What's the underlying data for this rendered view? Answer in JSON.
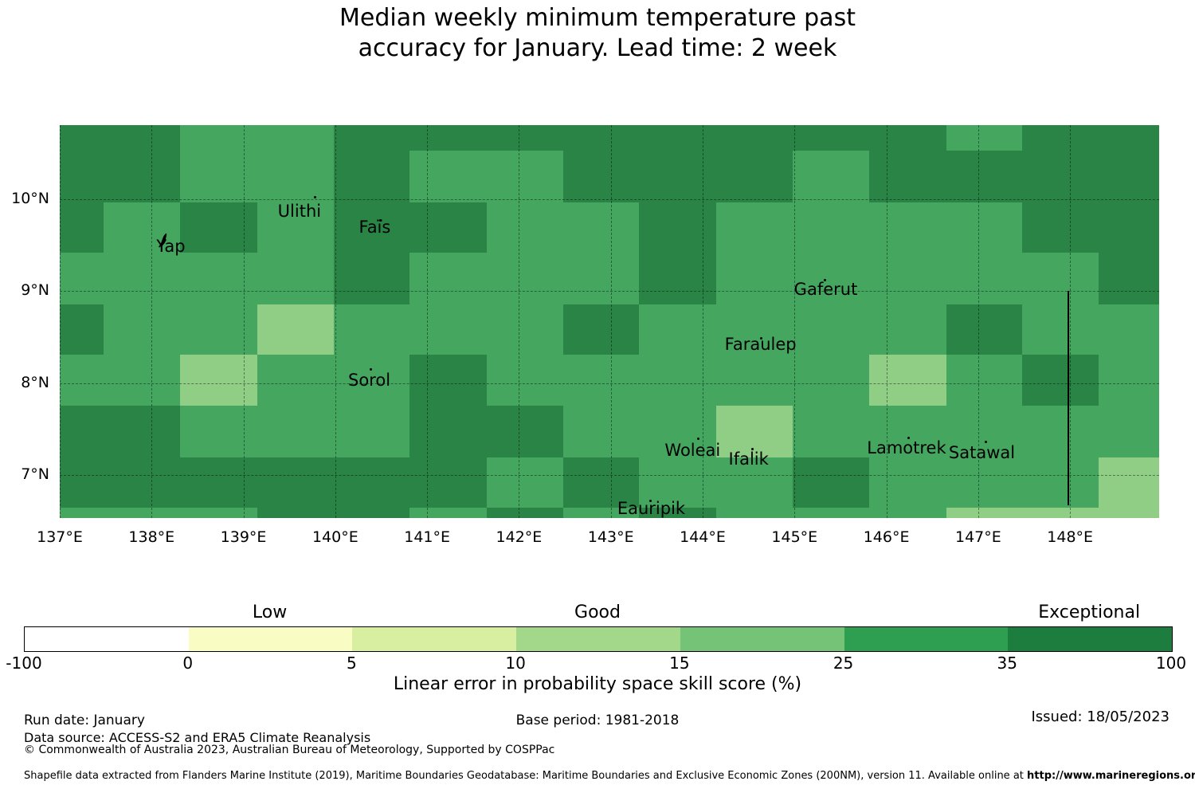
{
  "chart_data": {
    "type": "heatmap",
    "title": [
      "Median weekly minimum temperature past",
      "accuracy for January. Lead time: 2 week"
    ],
    "map": {
      "lon_min": 137.0,
      "lon_max": 148.97,
      "lat_min": 6.53,
      "lat_max": 10.81,
      "lon_edges": [
        137.0,
        137.48,
        138.31,
        139.15,
        139.98,
        140.81,
        141.65,
        142.48,
        143.31,
        144.15,
        144.98,
        145.81,
        146.65,
        147.48,
        148.31,
        148.97
      ],
      "lat_edges": [
        10.81,
        10.53,
        9.97,
        9.42,
        8.86,
        8.31,
        7.75,
        7.19,
        6.64,
        6.53
      ],
      "rows": [
        [
          "D",
          "D",
          "M",
          "M",
          "D",
          "D",
          "D",
          "D",
          "D",
          "D",
          "D",
          "D",
          "M",
          "D",
          "D"
        ],
        [
          "D",
          "D",
          "M",
          "M",
          "D",
          "M",
          "M",
          "D",
          "D",
          "D",
          "M",
          "D",
          "D",
          "D",
          "D"
        ],
        [
          "D",
          "M",
          "D",
          "M",
          "D",
          "D",
          "M",
          "M",
          "D",
          "M",
          "M",
          "M",
          "M",
          "D",
          "D"
        ],
        [
          "M",
          "M",
          "M",
          "M",
          "D",
          "M",
          "M",
          "M",
          "D",
          "M",
          "M",
          "M",
          "M",
          "M",
          "D"
        ],
        [
          "D",
          "M",
          "M",
          "L",
          "M",
          "M",
          "M",
          "D",
          "M",
          "M",
          "M",
          "M",
          "D",
          "M",
          "M"
        ],
        [
          "M",
          "M",
          "L",
          "M",
          "M",
          "D",
          "M",
          "M",
          "M",
          "M",
          "M",
          "L",
          "M",
          "D",
          "M"
        ],
        [
          "D",
          "D",
          "M",
          "M",
          "M",
          "D",
          "D",
          "M",
          "M",
          "L",
          "M",
          "M",
          "M",
          "M",
          "M"
        ],
        [
          "D",
          "D",
          "D",
          "D",
          "D",
          "D",
          "M",
          "D",
          "M",
          "M",
          "D",
          "M",
          "M",
          "M",
          "L"
        ],
        [
          "M",
          "M",
          "M",
          "D",
          "D",
          "M",
          "D",
          "M",
          "D",
          "M",
          "M",
          "M",
          "L",
          "L",
          "L"
        ]
      ],
      "classes": {
        "D": {
          "skill_bin": "35-100",
          "color": "#2a8446"
        },
        "M": {
          "skill_bin": "25-35",
          "color": "#45a65f"
        },
        "L": {
          "skill_bin": "15-25",
          "color": "#8fce84"
        }
      },
      "grid_lons": [
        137,
        138,
        139,
        140,
        141,
        142,
        143,
        144,
        145,
        146,
        147,
        148
      ],
      "grid_lats": [
        7,
        8,
        9,
        10
      ],
      "eez_boundary": {
        "lon": 147.98,
        "lat_from": 9.0,
        "lat_to": 6.67
      },
      "islands": [
        {
          "name": "Yap",
          "marker": "island",
          "dot_lon": 138.13,
          "dot_lat": 9.55,
          "label_lon": 138.21,
          "label_lat": 9.49
        },
        {
          "name": "Ulithi",
          "marker": "dot",
          "dot_lon": 139.78,
          "dot_lat": 10.02,
          "label_lon": 139.61,
          "label_lat": 9.87
        },
        {
          "name": "Faïs",
          "marker": "dot",
          "dot_lon": 140.49,
          "dot_lat": 9.77,
          "label_lon": 140.43,
          "label_lat": 9.7
        },
        {
          "name": "Gaferut",
          "marker": "dot",
          "dot_lon": 145.33,
          "dot_lat": 9.12,
          "label_lon": 145.34,
          "label_lat": 9.02
        },
        {
          "name": "Faraulep",
          "marker": "dot",
          "dot_lon": 144.64,
          "dot_lat": 8.49,
          "label_lon": 144.63,
          "label_lat": 8.42
        },
        {
          "name": "Sorol",
          "marker": "dot",
          "dot_lon": 140.39,
          "dot_lat": 8.15,
          "label_lon": 140.37,
          "label_lat": 8.03
        },
        {
          "name": "Woleai",
          "marker": "dot",
          "dot_lon": 143.95,
          "dot_lat": 7.39,
          "label_lon": 143.89,
          "label_lat": 7.27
        },
        {
          "name": "Ifalik",
          "marker": "dot",
          "dot_lon": 144.54,
          "dot_lat": 7.28,
          "label_lon": 144.5,
          "label_lat": 7.17
        },
        {
          "name": "Lamotrek",
          "marker": "dot",
          "dot_lon": 146.24,
          "dot_lat": 7.4,
          "label_lon": 146.22,
          "label_lat": 7.29
        },
        {
          "name": "Satawal",
          "marker": "dot",
          "dot_lon": 147.08,
          "dot_lat": 7.36,
          "label_lon": 147.04,
          "label_lat": 7.24
        },
        {
          "name": "Eauripik",
          "marker": "dot",
          "dot_lon": 143.43,
          "dot_lat": 6.72,
          "label_lon": 143.44,
          "label_lat": 6.63
        }
      ]
    },
    "x_ticks": [
      {
        "lon": 137,
        "label": "137°E"
      },
      {
        "lon": 138,
        "label": "138°E"
      },
      {
        "lon": 139,
        "label": "139°E"
      },
      {
        "lon": 140,
        "label": "140°E"
      },
      {
        "lon": 141,
        "label": "141°E"
      },
      {
        "lon": 142,
        "label": "142°E"
      },
      {
        "lon": 143,
        "label": "143°E"
      },
      {
        "lon": 144,
        "label": "144°E"
      },
      {
        "lon": 145,
        "label": "145°E"
      },
      {
        "lon": 146,
        "label": "146°E"
      },
      {
        "lon": 147,
        "label": "147°E"
      },
      {
        "lon": 148,
        "label": "148°E"
      }
    ],
    "y_ticks": [
      {
        "lat": 10,
        "label": "10°N"
      },
      {
        "lat": 9,
        "label": "9°N"
      },
      {
        "lat": 8,
        "label": "8°N"
      },
      {
        "lat": 7,
        "label": "7°N"
      }
    ],
    "colorbar": {
      "xlabel": "Linear error in probability space skill score (%)",
      "segments": [
        {
          "color": "#ffffff",
          "range": "-100 to 0"
        },
        {
          "color": "#f9fcc3",
          "range": "0 to 5"
        },
        {
          "color": "#d8eea1",
          "range": "5 to 10"
        },
        {
          "color": "#a3d88a",
          "range": "10 to 15"
        },
        {
          "color": "#74c376",
          "range": "15 to 25"
        },
        {
          "color": "#2e9e51",
          "range": "25 to 35"
        },
        {
          "color": "#1d7d3e",
          "range": "35 to 100"
        }
      ],
      "tick_labels": [
        "-100",
        "0",
        "5",
        "10",
        "15",
        "25",
        "35",
        "100"
      ],
      "categories": [
        {
          "label": "Low",
          "segment_index": 1
        },
        {
          "label": "Good",
          "segment_index": 3
        },
        {
          "label": "Exceptional",
          "segment_index": 6
        }
      ]
    }
  },
  "footer": {
    "run_date": "Run date: January",
    "base_period": "Base period: 1981-2018",
    "issued": "Issued: 18/05/2023",
    "data_source": "Data source: ACCESS-S2 and ERA5 Climate Reanalysis",
    "copyright": "© Commonwealth of Australia 2023, Australian Bureau of Meteorology, Supported by COSPPac",
    "shapefile_note": "Shapefile data extracted from Flanders Marine Institute (2019), Maritime Boundaries Geodatabase: Maritime Boundaries and Exclusive Economic Zones (200NM), version 11. Available online at ",
    "shapefile_url": "http://www.marineregions.org/."
  }
}
